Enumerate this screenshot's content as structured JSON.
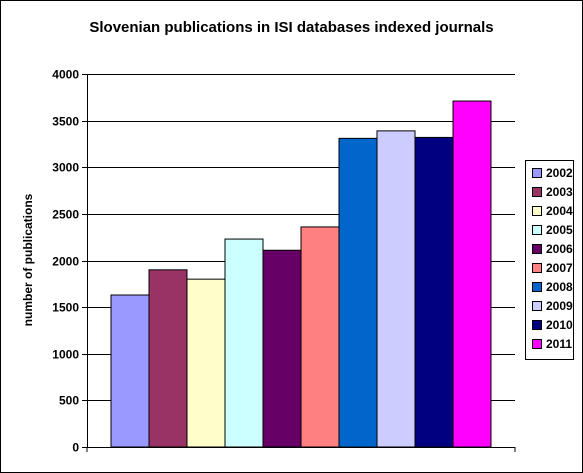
{
  "chart_data": {
    "type": "bar",
    "title": "Slovenian publications in ISI databases indexed journals",
    "xlabel": "",
    "ylabel": "number of publications",
    "ylim": [
      0,
      4000
    ],
    "yticks": [
      "0",
      "500",
      "1000",
      "1500",
      "2000",
      "2500",
      "3000",
      "3500",
      "4000"
    ],
    "grid": true,
    "legend_position": "right",
    "series": [
      {
        "name": "2002",
        "value": 1630,
        "color": "#9999ff"
      },
      {
        "name": "2003",
        "value": 1900,
        "color": "#993366"
      },
      {
        "name": "2004",
        "value": 1800,
        "color": "#ffffcc"
      },
      {
        "name": "2005",
        "value": 2230,
        "color": "#ccffff"
      },
      {
        "name": "2006",
        "value": 2110,
        "color": "#660066"
      },
      {
        "name": "2007",
        "value": 2360,
        "color": "#ff8080"
      },
      {
        "name": "2008",
        "value": 3310,
        "color": "#0066cc"
      },
      {
        "name": "2009",
        "value": 3390,
        "color": "#ccccff"
      },
      {
        "name": "2010",
        "value": 3320,
        "color": "#000080"
      },
      {
        "name": "2011",
        "value": 3710,
        "color": "#ff00ff"
      }
    ]
  }
}
